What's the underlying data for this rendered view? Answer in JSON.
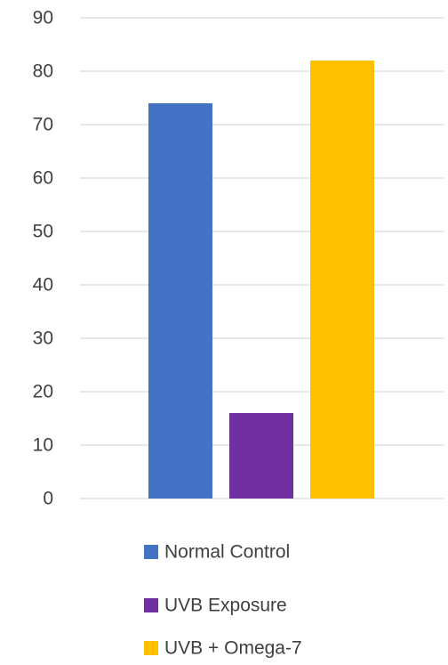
{
  "chart_data": {
    "type": "bar",
    "title": "",
    "xlabel": "",
    "ylabel": "",
    "ylim": [
      0,
      90
    ],
    "yticks": [
      0,
      10,
      20,
      30,
      40,
      50,
      60,
      70,
      80,
      90
    ],
    "grid": true,
    "legend_position": "bottom",
    "categories": [
      ""
    ],
    "series": [
      {
        "name": "Normal Control",
        "values": [
          74
        ],
        "color": "#4472c4"
      },
      {
        "name": "UVB Exposure",
        "values": [
          16
        ],
        "color": "#7030a0"
      },
      {
        "name": "UVB + Omega-7",
        "values": [
          82
        ],
        "color": "#ffc000"
      }
    ]
  }
}
